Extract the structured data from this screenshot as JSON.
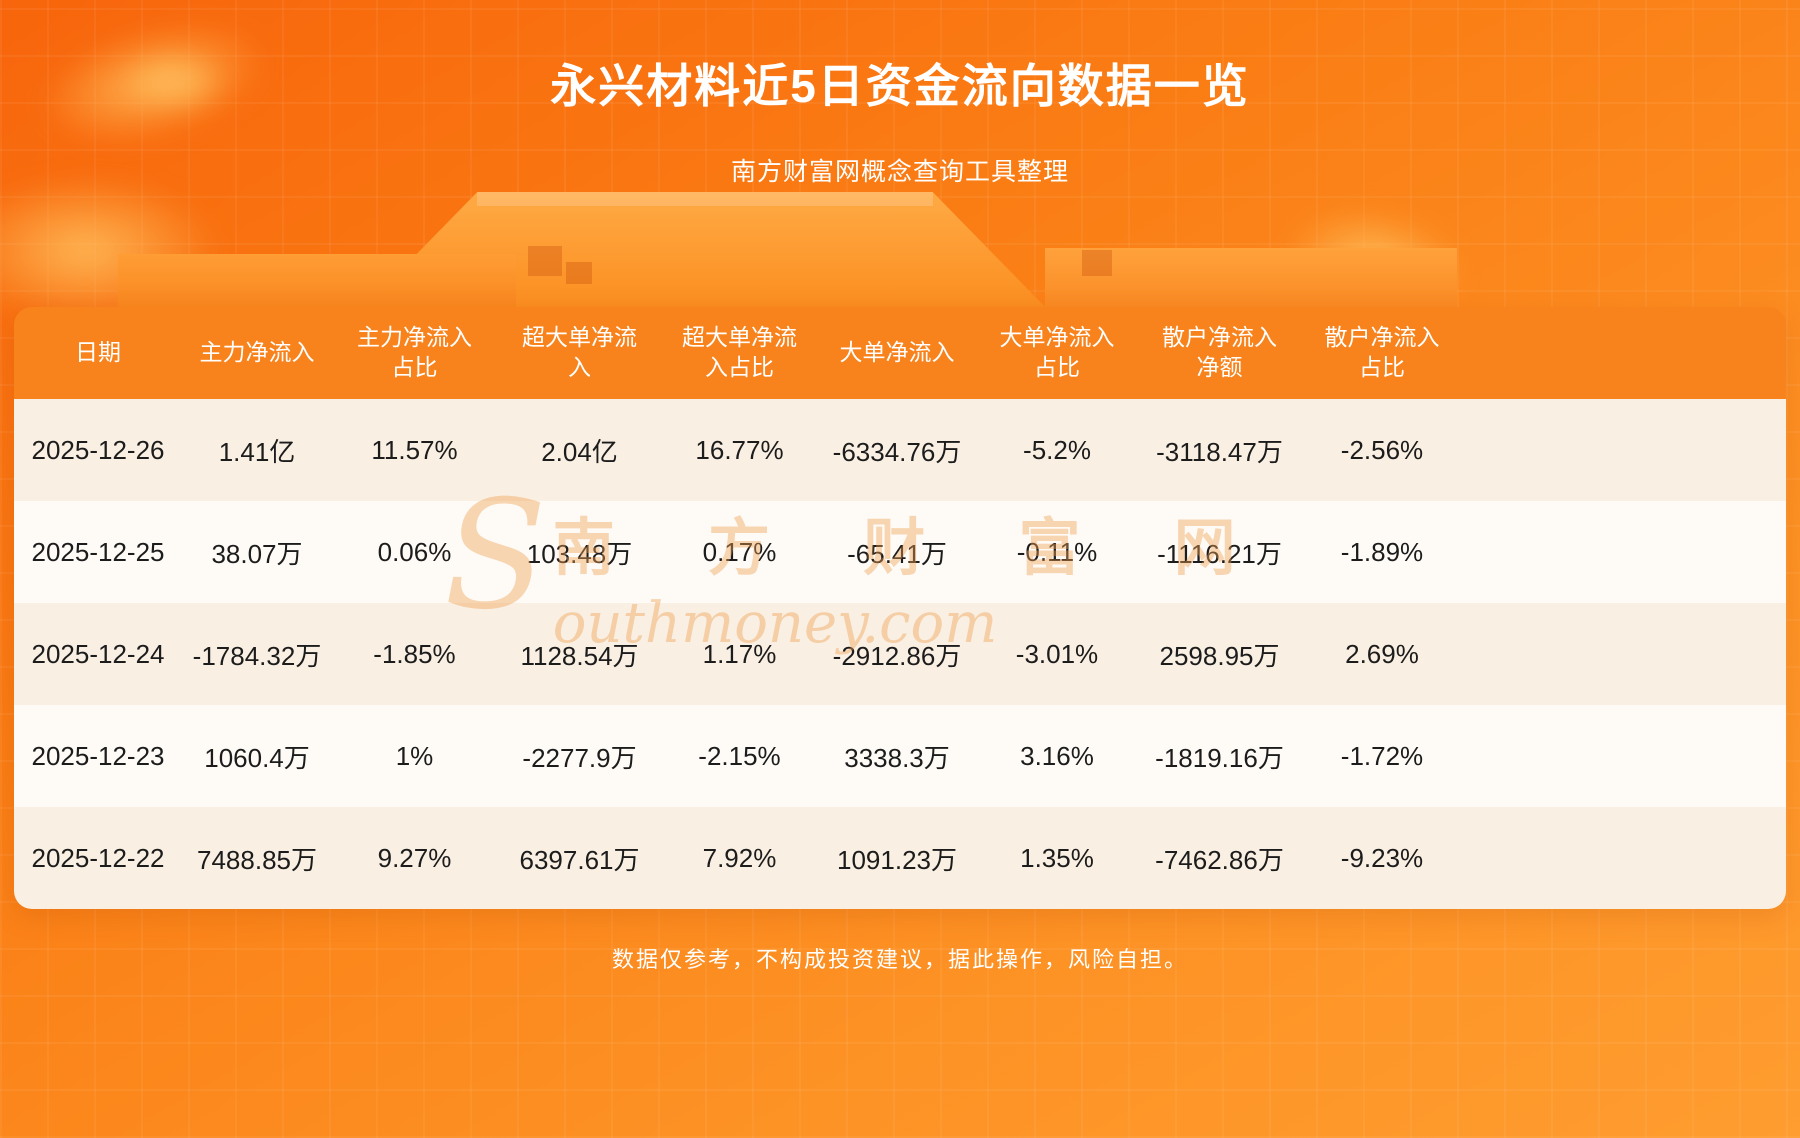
{
  "page": {
    "title": "永兴材料近5日资金流向数据一览",
    "subtitle": "南方财富网概念查询工具整理",
    "footer": "数据仅参考，不构成投资建议，据此操作，风险自担。",
    "watermark_s": "S",
    "watermark_cn": "南 方 财 富 网",
    "watermark_en": "outhmoney.com"
  },
  "colors": {
    "background_orange": "#fa7d14",
    "header_bg": "#f8831c",
    "row_odd": "#f9efe2",
    "row_even": "#fefbf7",
    "text_dark": "#1c1c1c",
    "text_white": "#ffffff"
  },
  "table": {
    "headers": [
      "日期",
      "主力净流入",
      "主力净流入占比",
      "超大单净流入",
      "超大单净流入占比",
      "大单净流入",
      "大单净流入占比",
      "散户净流入净额",
      "散户净流入占比"
    ],
    "rows": [
      [
        "2025-12-26",
        "1.41亿",
        "11.57%",
        "2.04亿",
        "16.77%",
        "-6334.76万",
        "-5.2%",
        "-3118.47万",
        "-2.56%"
      ],
      [
        "2025-12-25",
        "38.07万",
        "0.06%",
        "103.48万",
        "0.17%",
        "-65.41万",
        "-0.11%",
        "-1116.21万",
        "-1.89%"
      ],
      [
        "2025-12-24",
        "-1784.32万",
        "-1.85%",
        "1128.54万",
        "1.17%",
        "-2912.86万",
        "-3.01%",
        "2598.95万",
        "2.69%"
      ],
      [
        "2025-12-23",
        "1060.4万",
        "1%",
        "-2277.9万",
        "-2.15%",
        "3338.3万",
        "3.16%",
        "-1819.16万",
        "-1.72%"
      ],
      [
        "2025-12-22",
        "7488.85万",
        "9.27%",
        "6397.61万",
        "7.92%",
        "1091.23万",
        "1.35%",
        "-7462.86万",
        "-9.23%"
      ]
    ]
  },
  "chart_data": {
    "type": "table",
    "title": "永兴材料近5日资金流向数据一览",
    "subtitle": "南方财富网概念查询工具整理",
    "columns": [
      "日期",
      "主力净流入",
      "主力净流入占比",
      "超大单净流入",
      "超大单净流入占比",
      "大单净流入",
      "大单净流入占比",
      "散户净流入净额",
      "散户净流入占比"
    ],
    "rows": [
      [
        "2025-12-26",
        "1.41亿",
        "11.57%",
        "2.04亿",
        "16.77%",
        "-6334.76万",
        "-5.2%",
        "-3118.47万",
        "-2.56%"
      ],
      [
        "2025-12-25",
        "38.07万",
        "0.06%",
        "103.48万",
        "0.17%",
        "-65.41万",
        "-0.11%",
        "-1116.21万",
        "-1.89%"
      ],
      [
        "2025-12-24",
        "-1784.32万",
        "-1.85%",
        "1128.54万",
        "1.17%",
        "-2912.86万",
        "-3.01%",
        "2598.95万",
        "2.69%"
      ],
      [
        "2025-12-23",
        "1060.4万",
        "1%",
        "-2277.9万",
        "-2.15%",
        "3338.3万",
        "3.16%",
        "-1819.16万",
        "-1.72%"
      ],
      [
        "2025-12-22",
        "7488.85万",
        "9.27%",
        "6397.61万",
        "7.92%",
        "1091.23万",
        "1.35%",
        "-7462.86万",
        "-9.23%"
      ]
    ]
  }
}
